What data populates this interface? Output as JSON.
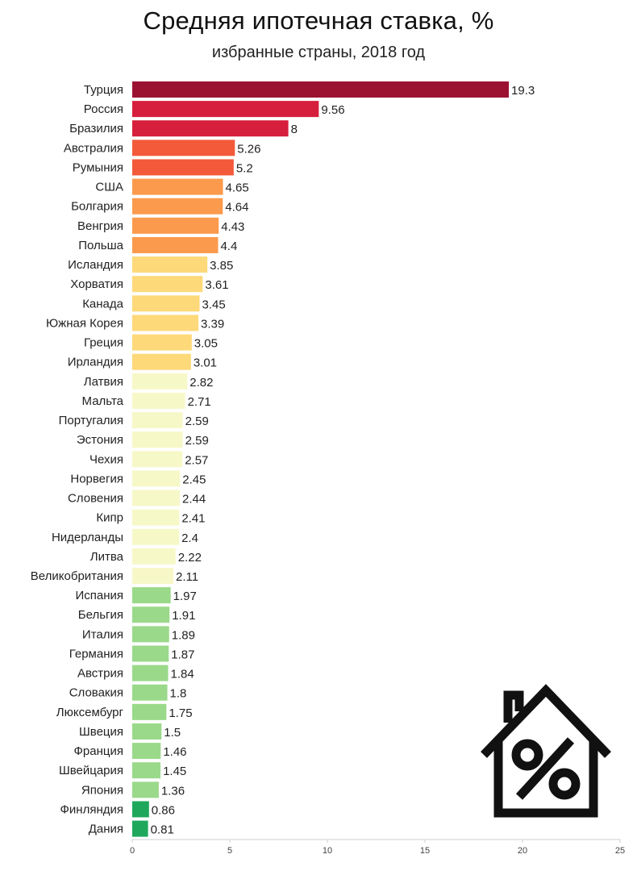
{
  "chart_data": {
    "type": "bar",
    "orientation": "horizontal",
    "title": "Средняя ипотечная ставка, %",
    "subtitle": "избранные страны, 2018 год",
    "xlim": [
      0,
      25
    ],
    "xticks": [
      "0",
      "5",
      "10",
      "15",
      "20",
      "25"
    ],
    "grid": false,
    "legend": "none",
    "categories": [
      "Турция",
      "Россия",
      "Бразилия",
      "Австралия",
      "Румыния",
      "США",
      "Болгария",
      "Венгрия",
      "Польша",
      "Исландия",
      "Хорватия",
      "Канада",
      "Южная Корея",
      "Греция",
      "Ирландия",
      "Латвия",
      "Мальта",
      "Португалия",
      "Эстония",
      "Чехия",
      "Норвегия",
      "Словения",
      "Кипр",
      "Нидерланды",
      "Литва",
      "Великобритания",
      "Испания",
      "Бельгия",
      "Италия",
      "Германия",
      "Австрия",
      "Словакия",
      "Люксембург",
      "Швеция",
      "Франция",
      "Швейцария",
      "Япония",
      "Финляндия",
      "Дания"
    ],
    "values": [
      19.3,
      9.56,
      8,
      5.26,
      5.2,
      4.65,
      4.64,
      4.43,
      4.4,
      3.85,
      3.61,
      3.45,
      3.39,
      3.05,
      3.01,
      2.82,
      2.71,
      2.59,
      2.59,
      2.57,
      2.45,
      2.44,
      2.41,
      2.4,
      2.22,
      2.11,
      1.97,
      1.91,
      1.89,
      1.87,
      1.84,
      1.8,
      1.75,
      1.5,
      1.46,
      1.45,
      1.36,
      0.86,
      0.81
    ],
    "value_labels": [
      "19.3",
      "9.56",
      "8",
      "5.26",
      "5.2",
      "4.65",
      "4.64",
      "4.43",
      "4.4",
      "3.85",
      "3.61",
      "3.45",
      "3.39",
      "3.05",
      "3.01",
      "2.82",
      "2.71",
      "2.59",
      "2.59",
      "2.57",
      "2.45",
      "2.44",
      "2.41",
      "2.4",
      "2.22",
      "2.11",
      "1.97",
      "1.91",
      "1.89",
      "1.87",
      "1.84",
      "1.8",
      "1.75",
      "1.5",
      "1.46",
      "1.45",
      "1.36",
      "0.86",
      "0.81"
    ],
    "colors": [
      "#9b1231",
      "#d61f3c",
      "#d61f3c",
      "#f25a3a",
      "#f25a3a",
      "#fb9a4c",
      "#fb9a4c",
      "#fb9a4c",
      "#fb9a4c",
      "#fed97a",
      "#fed97a",
      "#fed97a",
      "#fed97a",
      "#fed97a",
      "#fed97a",
      "#f7f8c8",
      "#f7f8c8",
      "#f7f8c8",
      "#f7f8c8",
      "#f7f8c8",
      "#f7f8c8",
      "#f7f8c8",
      "#f7f8c8",
      "#f7f8c8",
      "#f7f8c8",
      "#f7f8c8",
      "#9ad98a",
      "#9ad98a",
      "#9ad98a",
      "#9ad98a",
      "#9ad98a",
      "#9ad98a",
      "#9ad98a",
      "#9ad98a",
      "#9ad98a",
      "#9ad98a",
      "#9ad98a",
      "#1fa85c",
      "#1fa85c"
    ]
  },
  "decoration": {
    "icon": "house-percent-icon"
  }
}
